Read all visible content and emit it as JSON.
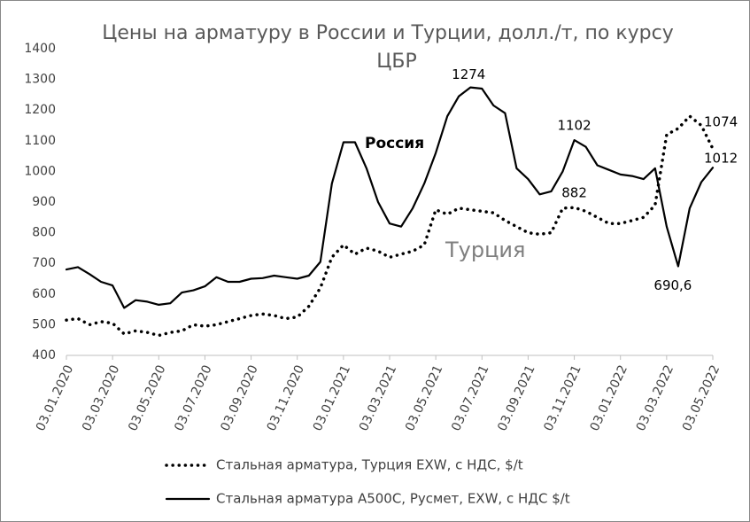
{
  "chart_data": {
    "type": "line",
    "title": [
      "Цены на арматуру в России и Турции, долл./т, по курсу",
      "ЦБР"
    ],
    "annotations": [
      "Россия",
      "Турция"
    ],
    "categories": [
      "03.01.2020",
      null,
      null,
      null,
      "03.03.2020",
      null,
      null,
      null,
      "03.05.2020",
      null,
      null,
      null,
      "03.07.2020",
      null,
      null,
      null,
      "03.09.2020",
      null,
      null,
      null,
      "03.11.2020",
      null,
      null,
      null,
      "03.01.2021",
      null,
      null,
      null,
      "03.03.2021",
      null,
      null,
      null,
      "03.05.2021",
      null,
      null,
      null,
      "03.07.2021",
      null,
      null,
      null,
      "03.09.2021",
      null,
      null,
      null,
      "03.11.2021",
      null,
      null,
      null,
      "03.01.2022",
      null,
      null,
      null,
      "03.03.2022",
      null,
      null,
      null,
      "03.05.2022"
    ],
    "series": [
      {
        "name": "Стальная арматура, Турция EXW, с НДС, $/t",
        "color": "#000000",
        "style": "dotted",
        "values": [
          515,
          520,
          500,
          510,
          505,
          470,
          480,
          475,
          465,
          475,
          480,
          500,
          495,
          500,
          510,
          520,
          530,
          535,
          530,
          520,
          525,
          560,
          620,
          720,
          760,
          730,
          750,
          740,
          720,
          730,
          740,
          760,
          875,
          860,
          880,
          875,
          870,
          865,
          840,
          820,
          800,
          795,
          800,
          880,
          882,
          870,
          850,
          830,
          830,
          840,
          850,
          890,
          1120,
          1140,
          1180,
          1150,
          1074
        ],
        "value_labels": [
          null,
          null,
          null,
          null,
          null,
          null,
          null,
          null,
          null,
          null,
          null,
          null,
          null,
          null,
          null,
          null,
          null,
          null,
          null,
          null,
          null,
          null,
          null,
          null,
          null,
          null,
          null,
          null,
          null,
          null,
          null,
          null,
          null,
          null,
          null,
          null,
          null,
          null,
          null,
          null,
          null,
          null,
          null,
          null,
          "882",
          null,
          null,
          null,
          null,
          null,
          null,
          null,
          null,
          null,
          null,
          null,
          "1074"
        ]
      },
      {
        "name": "Стальная арматура А500С, Русмет, EXW, с НДС $/t",
        "color": "#000000",
        "style": "solid",
        "values": [
          680,
          688,
          665,
          640,
          628,
          555,
          580,
          575,
          565,
          570,
          605,
          612,
          625,
          655,
          640,
          640,
          650,
          652,
          660,
          655,
          650,
          660,
          705,
          960,
          1095,
          1095,
          1010,
          900,
          830,
          820,
          880,
          960,
          1060,
          1180,
          1245,
          1274,
          1270,
          1215,
          1190,
          1010,
          975,
          925,
          935,
          1000,
          1102,
          1080,
          1020,
          1005,
          990,
          985,
          975,
          1010,
          820,
          690.6,
          880,
          965,
          1012
        ],
        "value_labels": [
          null,
          null,
          null,
          null,
          null,
          null,
          null,
          null,
          null,
          null,
          null,
          null,
          null,
          null,
          null,
          null,
          null,
          null,
          null,
          null,
          null,
          null,
          null,
          null,
          null,
          null,
          null,
          null,
          null,
          null,
          null,
          null,
          null,
          null,
          null,
          "1274",
          null,
          null,
          null,
          null,
          null,
          null,
          null,
          null,
          "1102",
          null,
          null,
          null,
          null,
          null,
          null,
          null,
          null,
          "690,6",
          null,
          null,
          "1012"
        ]
      }
    ],
    "ylim": [
      400,
      1400
    ],
    "yticks": [
      400,
      500,
      600,
      700,
      800,
      900,
      1000,
      1100,
      1200,
      1300,
      1400
    ],
    "grid": false,
    "legend": "bottom"
  }
}
